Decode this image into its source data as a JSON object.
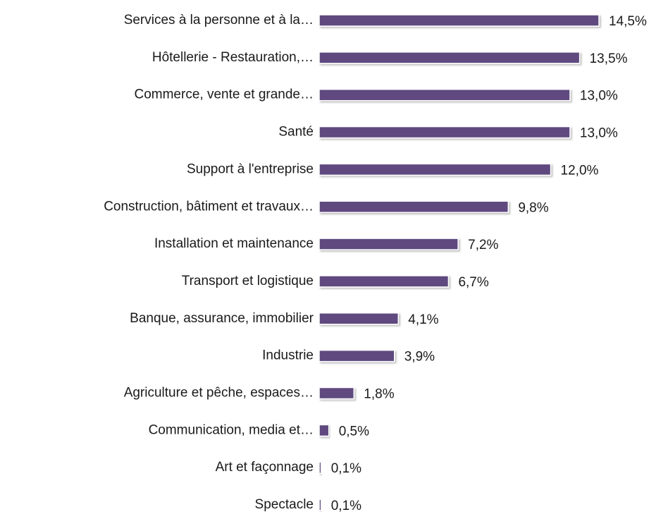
{
  "chart_data": {
    "type": "barh",
    "categories": [
      "Services à la personne et à la…",
      "Hôtellerie - Restauration,…",
      "Commerce, vente et grande…",
      "Santé",
      "Support à l'entreprise",
      "Construction, bâtiment et travaux…",
      "Installation et maintenance",
      "Transport et logistique",
      "Banque, assurance, immobilier",
      "Industrie",
      "Agriculture et pêche, espaces…",
      "Communication, media et…",
      "Art et façonnage",
      "Spectacle"
    ],
    "values": [
      14.5,
      13.5,
      13.0,
      13.0,
      12.0,
      9.8,
      7.2,
      6.7,
      4.1,
      3.9,
      1.8,
      0.5,
      0.1,
      0.1
    ],
    "value_labels": [
      "14,5%",
      "13,5%",
      "13,0%",
      "13,0%",
      "12,0%",
      "9,8%",
      "7,2%",
      "6,7%",
      "4,1%",
      "3,9%",
      "1,8%",
      "0,5%",
      "0,1%",
      "0,1%"
    ],
    "color": "#5f4a7f"
  }
}
